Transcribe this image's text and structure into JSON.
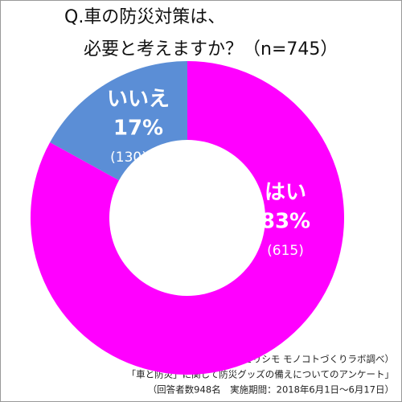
{
  "chart_data": {
    "type": "donut",
    "title": [
      "Q.車の防災対策は、",
      "必要と考えますか？（n=745）"
    ],
    "categories": [
      "はい",
      "いいえ"
    ],
    "values": [
      83,
      17
    ],
    "value_labels": [
      "83%",
      "17%"
    ],
    "counts": [
      615,
      130
    ],
    "count_labels": [
      "(615)",
      "(130)"
    ],
    "colors": [
      "#ff00ff",
      "#5b8ed6"
    ],
    "notes": [
      "（フェリシモ モノコトづくりラボ調べ）",
      "「車と防災」に関して防災グッズの備えについてのアンケート」",
      "（回答者数948名　実施期間：2018年6月1日～6月17日）"
    ]
  }
}
